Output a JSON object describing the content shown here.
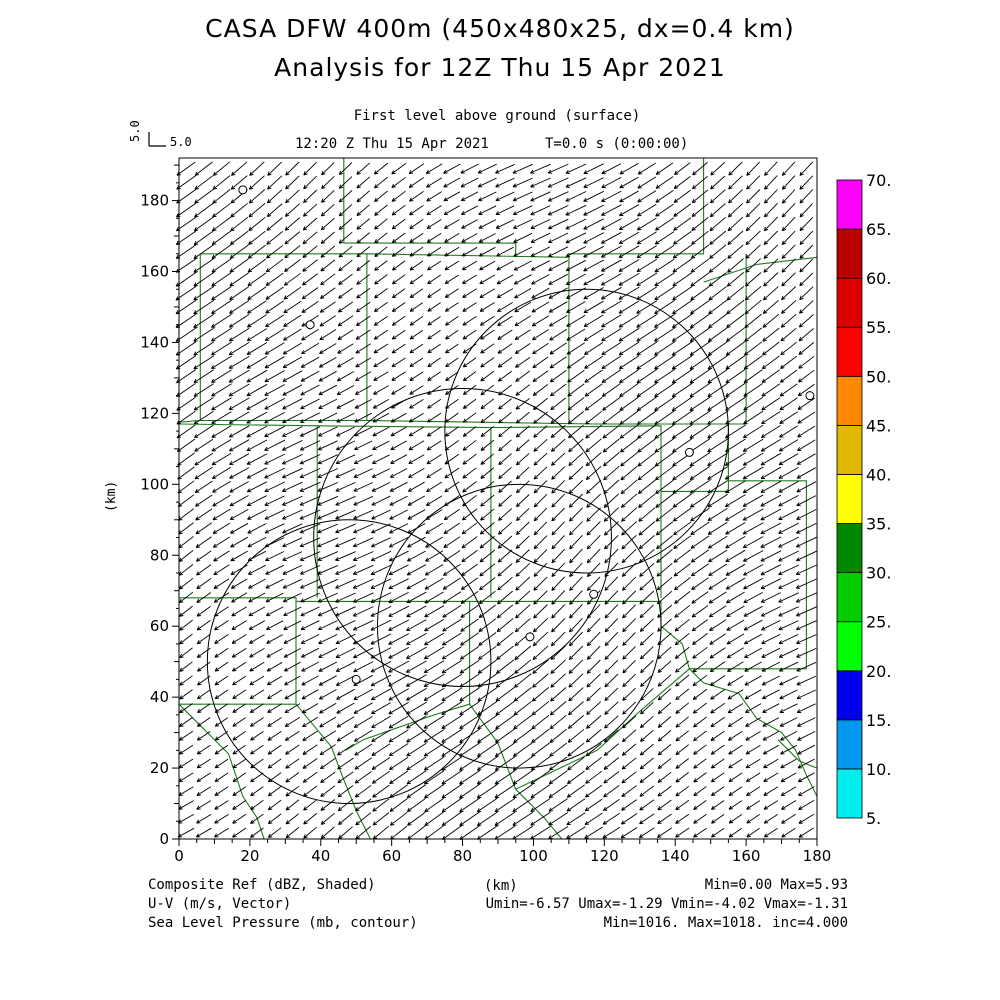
{
  "header": {
    "title_line1": "CASA DFW 400m (450x480x25, dx=0.4 km)",
    "title_line2": "Analysis for 12Z Thu 15 Apr 2021",
    "level": "First level above ground (surface)",
    "valid_time": "12:20 Z Thu 15 Apr 2021",
    "forecast_time": "T=0.0 s (0:00:00)"
  },
  "vector_key": {
    "label": "5.0",
    "rotated_label": "5.0"
  },
  "axes": {
    "x_unit": "(km)",
    "y_unit": "(km)",
    "x_ticks": [
      "0",
      "20",
      "40",
      "60",
      "80",
      "100",
      "120",
      "140",
      "160",
      "180"
    ],
    "y_ticks": [
      "0",
      "20",
      "40",
      "60",
      "80",
      "100",
      "120",
      "140",
      "160",
      "180"
    ],
    "x_range": [
      0,
      180
    ],
    "y_range": [
      0,
      192
    ]
  },
  "colorbar": {
    "labels": [
      "5.",
      "10.",
      "15.",
      "20.",
      "25.",
      "30.",
      "35.",
      "40.",
      "45.",
      "50.",
      "55.",
      "60.",
      "65.",
      "70."
    ],
    "colors": [
      "#00eeee",
      "#0099ee",
      "#0000ee",
      "#00ff00",
      "#00cc00",
      "#008800",
      "#ffff00",
      "#e0b800",
      "#ff8800",
      "#ff0000",
      "#dd0000",
      "#bb0000",
      "#ff00ff"
    ]
  },
  "footer": {
    "field1": "Composite Ref (dBZ, Shaded)",
    "field1_stats": "Min=0.00 Max=5.93",
    "field2": "U-V (m/s, Vector)",
    "field2_stats": "Umin=-6.57 Umax=-1.29 Vmin=-4.02 Vmax=-1.31",
    "field3": "Sea Level Pressure (mb, contour)",
    "field3_stats": "Min=1016. Max=1018. inc=4.000"
  },
  "chart_data": {
    "type": "vector_field",
    "wind": {
      "u_range": [
        -6.57,
        -1.29
      ],
      "v_range": [
        -4.02,
        -1.31
      ]
    },
    "radar_rings_km": [
      {
        "center": [
          115,
          115
        ],
        "radius": 40
      },
      {
        "center": [
          80,
          85
        ],
        "radius": 42
      },
      {
        "center": [
          96,
          60
        ],
        "radius": 40
      },
      {
        "center": [
          48,
          50
        ],
        "radius": 40
      }
    ],
    "radar_sites_km": [
      [
        18,
        183
      ],
      [
        37,
        145
      ],
      [
        178,
        125
      ],
      [
        144,
        109
      ],
      [
        117,
        69
      ],
      [
        99,
        57
      ],
      [
        50,
        45
      ]
    ],
    "colors": {
      "county_lines": "#1e7a1e",
      "vectors": "#000000",
      "rings": "#000000"
    }
  }
}
